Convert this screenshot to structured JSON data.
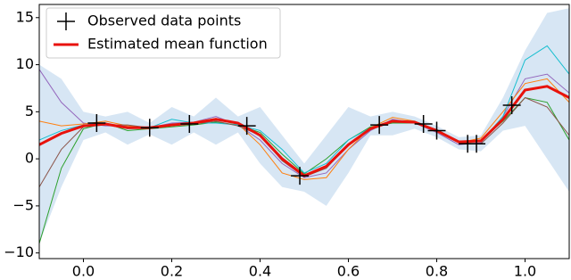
{
  "chart_data": {
    "type": "line",
    "x": [
      -0.1,
      -0.05,
      0,
      0.05,
      0.1,
      0.15,
      0.2,
      0.25,
      0.3,
      0.35,
      0.4,
      0.45,
      0.5,
      0.55,
      0.6,
      0.65,
      0.7,
      0.75,
      0.8,
      0.85,
      0.9,
      0.95,
      1.0,
      1.05,
      1.1
    ],
    "band": {
      "color": "#c6dbef",
      "upper": [
        10,
        8.5,
        5,
        4.5,
        5,
        3.8,
        5.5,
        4.5,
        6.5,
        4.5,
        5.5,
        2.5,
        -0.5,
        2.5,
        5.5,
        4.5,
        5,
        4.5,
        3.5,
        2.3,
        2.5,
        6.5,
        11.5,
        15.5,
        16
      ],
      "lower": [
        -9,
        -3,
        2,
        2.8,
        1.5,
        2.6,
        1.5,
        2.8,
        1.5,
        2.8,
        -0.5,
        -3,
        -3.5,
        -5,
        -1.5,
        2.5,
        2.5,
        3.2,
        2.3,
        1.0,
        0.8,
        3,
        3.5,
        0,
        -3.5
      ]
    },
    "samples": [
      {
        "color": "#9467bd",
        "values": [
          9.5,
          6,
          3.8,
          3.5,
          3.5,
          3.3,
          3.8,
          3.9,
          4.5,
          3.6,
          2,
          -0.5,
          -2,
          -1.5,
          1,
          3,
          4.2,
          3.8,
          2.8,
          1.5,
          1.7,
          4.5,
          8.5,
          9,
          7
        ]
      },
      {
        "color": "#2ca02c",
        "values": [
          -9,
          -1,
          3.2,
          3.8,
          3,
          3.2,
          3.4,
          3.6,
          3.9,
          3.6,
          2.8,
          0.5,
          -1.6,
          0,
          2,
          3.4,
          3.8,
          3.8,
          3.1,
          1.8,
          2,
          4,
          6.5,
          6,
          2
        ]
      },
      {
        "color": "#ff7f0e",
        "values": [
          4,
          3.5,
          3.7,
          4,
          3.5,
          3.3,
          3.5,
          3.9,
          4.3,
          3.7,
          1.5,
          -1.5,
          -2.2,
          -2,
          1,
          3.3,
          4.4,
          4,
          2.9,
          1.7,
          2.2,
          5,
          8,
          8.5,
          6
        ]
      },
      {
        "color": "#17becf",
        "values": [
          2,
          3,
          3.6,
          3.8,
          3.2,
          3.3,
          4.2,
          3.8,
          3.8,
          3.6,
          3,
          1,
          -1.5,
          -0.5,
          2,
          3.3,
          4,
          4,
          3,
          1.9,
          1.8,
          4.5,
          10.5,
          12,
          9
        ]
      },
      {
        "color": "#8c564b",
        "values": [
          -3,
          1,
          3.4,
          3.6,
          3.6,
          3.3,
          3.6,
          3.7,
          4,
          3.5,
          2.5,
          -0.2,
          -1.9,
          -1,
          1.5,
          3.1,
          3.9,
          3.8,
          3.1,
          1.7,
          1.6,
          3.8,
          6.5,
          5.5,
          2.5
        ]
      }
    ],
    "series": [
      {
        "name": "Estimated mean function",
        "color": "#e8120c",
        "values": [
          1.5,
          2.7,
          3.5,
          3.7,
          3.3,
          3.3,
          3.6,
          3.8,
          4.2,
          3.8,
          2.5,
          0.0,
          -1.8,
          -0.8,
          1.5,
          3.2,
          4.0,
          3.9,
          3.0,
          1.8,
          1.9,
          4.2,
          7.3,
          7.7,
          6.5
        ]
      }
    ],
    "observed": {
      "name": "Observed data points",
      "color": "#000000",
      "x": [
        0.03,
        0.15,
        0.24,
        0.37,
        0.49,
        0.67,
        0.77,
        0.8,
        0.87,
        0.89,
        0.97
      ],
      "y": [
        3.8,
        3.3,
        3.7,
        3.5,
        -1.8,
        3.6,
        3.7,
        3.0,
        1.6,
        1.6,
        5.7
      ]
    },
    "xlim": [
      -0.1,
      1.1
    ],
    "ylim": [
      -10.6,
      16.4
    ],
    "xticks": [
      {
        "value": 0,
        "label": "0.0"
      },
      {
        "value": 0.2,
        "label": "0.2"
      },
      {
        "value": 0.4,
        "label": "0.4"
      },
      {
        "value": 0.6,
        "label": "0.6"
      },
      {
        "value": 0.8,
        "label": "0.8"
      },
      {
        "value": 1.0,
        "label": "1.0"
      }
    ],
    "yticks": [
      {
        "value": -10,
        "label": "−10"
      },
      {
        "value": -5,
        "label": "−5"
      },
      0,
      5,
      10,
      15
    ],
    "legend": "upper left"
  }
}
